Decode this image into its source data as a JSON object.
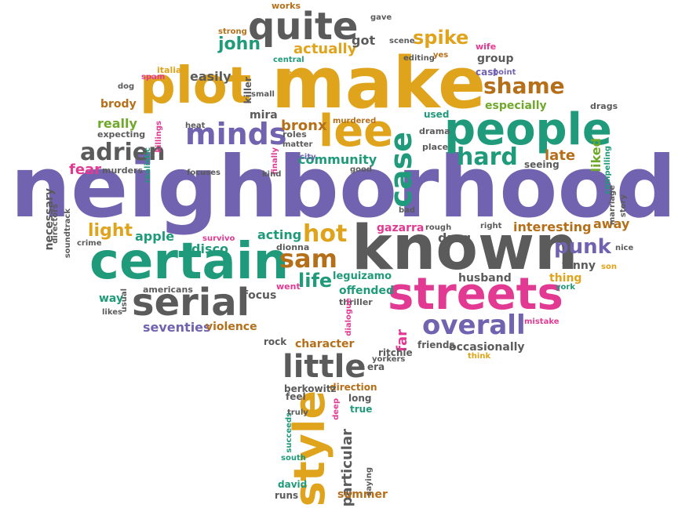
{
  "palette": {
    "gold": "#e0a31c",
    "purple": "#7263b0",
    "green": "#1f9a7a",
    "lime": "#6fa82a",
    "pink": "#e23a93",
    "gray": "#5b5b5b",
    "brown": "#b46f18",
    "orange": "#e35c24"
  },
  "words": [
    {
      "text": "neighborhood",
      "color": "purple"
    },
    {
      "text": "make",
      "color": "gold"
    },
    {
      "text": "known",
      "color": "gray"
    },
    {
      "text": "certain",
      "color": "green"
    },
    {
      "text": "streets",
      "color": "pink"
    },
    {
      "text": "plot",
      "color": "gold"
    },
    {
      "text": "people",
      "color": "green"
    },
    {
      "text": "quite",
      "color": "gray"
    },
    {
      "text": "lee",
      "color": "gold"
    },
    {
      "text": "serial",
      "color": "gray"
    },
    {
      "text": "minds",
      "color": "purple"
    },
    {
      "text": "style",
      "color": "gold"
    },
    {
      "text": "little",
      "color": "gray"
    },
    {
      "text": "overall",
      "color": "purple"
    },
    {
      "text": "adrien",
      "color": "gray"
    },
    {
      "text": "shame",
      "color": "brown"
    },
    {
      "text": "case",
      "color": "green"
    },
    {
      "text": "hard",
      "color": "green"
    },
    {
      "text": "sam",
      "color": "brown"
    },
    {
      "text": "hot",
      "color": "gold"
    },
    {
      "text": "punk",
      "color": "purple"
    },
    {
      "text": "spike",
      "color": "gold"
    },
    {
      "text": "light",
      "color": "gold"
    },
    {
      "text": "life",
      "color": "green"
    },
    {
      "text": "john",
      "color": "green"
    },
    {
      "text": "actually",
      "color": "gold"
    },
    {
      "text": "bronx",
      "color": "brown"
    },
    {
      "text": "community",
      "color": "green"
    },
    {
      "text": "seventies",
      "color": "purple"
    },
    {
      "text": "particular",
      "color": "gray"
    },
    {
      "text": "character",
      "color": "brown"
    },
    {
      "text": "fear",
      "color": "pink"
    },
    {
      "text": "far",
      "color": "pink"
    },
    {
      "text": "interesting",
      "color": "brown"
    },
    {
      "text": "really",
      "color": "lime"
    },
    {
      "text": "easily",
      "color": "gray"
    },
    {
      "text": "got",
      "color": "gray"
    },
    {
      "text": "apple",
      "color": "green"
    },
    {
      "text": "disco",
      "color": "green"
    },
    {
      "text": "acting",
      "color": "green"
    },
    {
      "text": "drug",
      "color": "gray"
    },
    {
      "text": "violence",
      "color": "brown"
    },
    {
      "text": "especially",
      "color": "lime"
    },
    {
      "text": "late",
      "color": "brown"
    },
    {
      "text": "away",
      "color": "brown"
    },
    {
      "text": "liked",
      "color": "lime"
    },
    {
      "text": "necessary",
      "color": "gray"
    },
    {
      "text": "focus",
      "color": "gray"
    },
    {
      "text": "leguizamo",
      "color": "green"
    },
    {
      "text": "gazarra",
      "color": "pink"
    },
    {
      "text": "offended",
      "color": "green"
    },
    {
      "text": "brody",
      "color": "brown"
    },
    {
      "text": "mira",
      "color": "gray"
    },
    {
      "text": "group",
      "color": "gray"
    },
    {
      "text": "husband",
      "color": "gray"
    },
    {
      "text": "thing",
      "color": "gold"
    },
    {
      "text": "vinny",
      "color": "gray"
    },
    {
      "text": "occasionally",
      "color": "gray"
    },
    {
      "text": "friends",
      "color": "gray"
    },
    {
      "text": "rock",
      "color": "gray"
    },
    {
      "text": "way",
      "color": "green"
    },
    {
      "text": "summer",
      "color": "brown"
    },
    {
      "text": "runs",
      "color": "gray"
    },
    {
      "text": "feel",
      "color": "gray"
    },
    {
      "text": "long",
      "color": "gray"
    },
    {
      "text": "true",
      "color": "green"
    },
    {
      "text": "seeing",
      "color": "gray"
    },
    {
      "text": "used",
      "color": "green"
    },
    {
      "text": "direction",
      "color": "brown"
    },
    {
      "text": "ritchie",
      "color": "gray"
    },
    {
      "text": "era",
      "color": "gray"
    },
    {
      "text": "dionna",
      "color": "gray"
    },
    {
      "text": "berkowitz",
      "color": "gray"
    },
    {
      "text": "cast",
      "color": "purple"
    },
    {
      "text": "drama",
      "color": "gray"
    },
    {
      "text": "place",
      "color": "gray"
    },
    {
      "text": "thriller",
      "color": "gray"
    },
    {
      "text": "went",
      "color": "pink"
    },
    {
      "text": "americans",
      "color": "gray"
    },
    {
      "text": "killer",
      "color": "gray"
    },
    {
      "text": "murders",
      "color": "gray"
    },
    {
      "text": "works",
      "color": "brown"
    },
    {
      "text": "strong",
      "color": "brown"
    },
    {
      "text": "gave",
      "color": "gray"
    },
    {
      "text": "scene",
      "color": "gray"
    },
    {
      "text": "wife",
      "color": "pink"
    },
    {
      "text": "yes",
      "color": "brown"
    },
    {
      "text": "editing",
      "color": "gray"
    },
    {
      "text": "central",
      "color": "green"
    },
    {
      "text": "small",
      "color": "gray"
    },
    {
      "text": "try",
      "color": "gold"
    },
    {
      "text": "italian",
      "color": "gold"
    },
    {
      "text": "spam",
      "color": "pink"
    },
    {
      "text": "dog",
      "color": "gray"
    },
    {
      "text": "point",
      "color": "purple"
    },
    {
      "text": "drags",
      "color": "gray"
    },
    {
      "text": "heat",
      "color": "gray"
    },
    {
      "text": "killings",
      "color": "pink"
    },
    {
      "text": "expecting",
      "color": "gray"
    },
    {
      "text": "realistic",
      "color": "green"
    },
    {
      "text": "roles",
      "color": "gray"
    },
    {
      "text": "matter",
      "color": "gray"
    },
    {
      "text": "murdered",
      "color": "brown"
    },
    {
      "text": "city",
      "color": "purple"
    },
    {
      "text": "good",
      "color": "gray"
    },
    {
      "text": "finally",
      "color": "pink"
    },
    {
      "text": "kind",
      "color": "gray"
    },
    {
      "text": "focuses",
      "color": "gray"
    },
    {
      "text": "directors",
      "color": "gray"
    },
    {
      "text": "soundtrack",
      "color": "gray"
    },
    {
      "text": "crime",
      "color": "gray"
    },
    {
      "text": "survivo",
      "color": "pink"
    },
    {
      "text": "bad",
      "color": "gray"
    },
    {
      "text": "rough",
      "color": "gray"
    },
    {
      "text": "right",
      "color": "gray"
    },
    {
      "text": "compelling",
      "color": "green"
    },
    {
      "text": "marriage",
      "color": "gray"
    },
    {
      "text": "story",
      "color": "gray"
    },
    {
      "text": "nice",
      "color": "gray"
    },
    {
      "text": "son",
      "color": "gold"
    },
    {
      "text": "york",
      "color": "green"
    },
    {
      "text": "mistake",
      "color": "pink"
    },
    {
      "text": "usual",
      "color": "gray"
    },
    {
      "text": "likes",
      "color": "gray"
    },
    {
      "text": "dialogue",
      "color": "pink"
    },
    {
      "text": "yorkers",
      "color": "gray"
    },
    {
      "text": "think",
      "color": "gold"
    },
    {
      "text": "deep",
      "color": "pink"
    },
    {
      "text": "succeeds",
      "color": "green"
    },
    {
      "text": "truly",
      "color": "gray"
    },
    {
      "text": "south",
      "color": "green"
    },
    {
      "text": "david",
      "color": "green"
    },
    {
      "text": "saying",
      "color": "gray"
    }
  ]
}
